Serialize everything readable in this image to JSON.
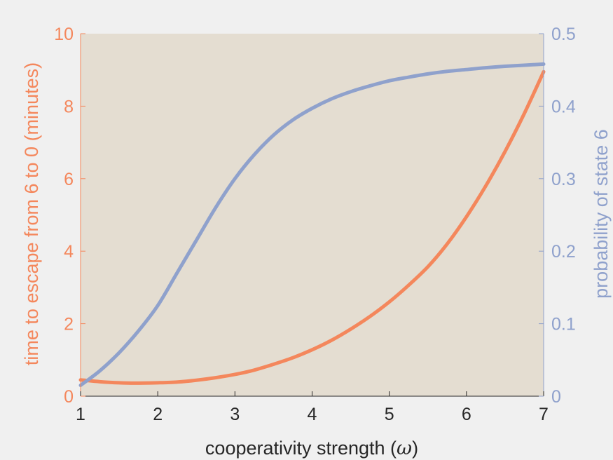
{
  "chart_data": {
    "type": "line",
    "xlabel": "cooperativity strength (",
    "xlabel_symbol": "ω",
    "xlabel_close": ")",
    "ylabel_left": "time to escape from 6 to 0 (minutes)",
    "ylabel_right": "probability of state 6",
    "xlim": [
      1,
      7
    ],
    "ylim_left": [
      0,
      10
    ],
    "ylim_right": [
      0,
      0.5
    ],
    "x_ticks": [
      "1",
      "2",
      "3",
      "4",
      "5",
      "6",
      "7"
    ],
    "y_left_ticks": [
      "0",
      "2",
      "4",
      "6",
      "8",
      "10"
    ],
    "y_right_ticks": [
      "0",
      "0.1",
      "0.2",
      "0.3",
      "0.4",
      "0.5"
    ],
    "grid": false,
    "colors": {
      "plot_background": "#e4ddd1",
      "figure_background": "#f0f0f0",
      "left_axis": "#f4875c",
      "right_axis": "#8fa1cc",
      "x_axis": "#262626"
    },
    "series": [
      {
        "axis": "left",
        "color": "#f4875c",
        "x": [
          1.0,
          1.25,
          1.5,
          1.7,
          2.0,
          2.25,
          2.5,
          2.75,
          3.0,
          3.25,
          3.5,
          3.75,
          4.0,
          4.25,
          4.5,
          4.75,
          5.0,
          5.25,
          5.5,
          5.75,
          6.0,
          6.25,
          6.5,
          6.75,
          7.0
        ],
        "values": [
          0.45,
          0.4,
          0.37,
          0.36,
          0.37,
          0.39,
          0.44,
          0.51,
          0.6,
          0.72,
          0.88,
          1.06,
          1.28,
          1.54,
          1.85,
          2.2,
          2.6,
          3.06,
          3.57,
          4.2,
          4.95,
          5.8,
          6.75,
          7.8,
          8.95
        ]
      },
      {
        "axis": "right",
        "color": "#8fa1cc",
        "x": [
          1.0,
          1.25,
          1.5,
          1.75,
          2.0,
          2.25,
          2.5,
          2.75,
          3.0,
          3.25,
          3.5,
          3.75,
          4.0,
          4.25,
          4.5,
          4.75,
          5.0,
          5.25,
          5.5,
          5.75,
          6.0,
          6.25,
          6.5,
          6.75,
          7.0
        ],
        "values": [
          0.015,
          0.035,
          0.06,
          0.09,
          0.125,
          0.17,
          0.215,
          0.26,
          0.3,
          0.333,
          0.36,
          0.381,
          0.397,
          0.41,
          0.42,
          0.428,
          0.435,
          0.44,
          0.4445,
          0.448,
          0.4505,
          0.453,
          0.455,
          0.4565,
          0.458
        ]
      }
    ]
  }
}
